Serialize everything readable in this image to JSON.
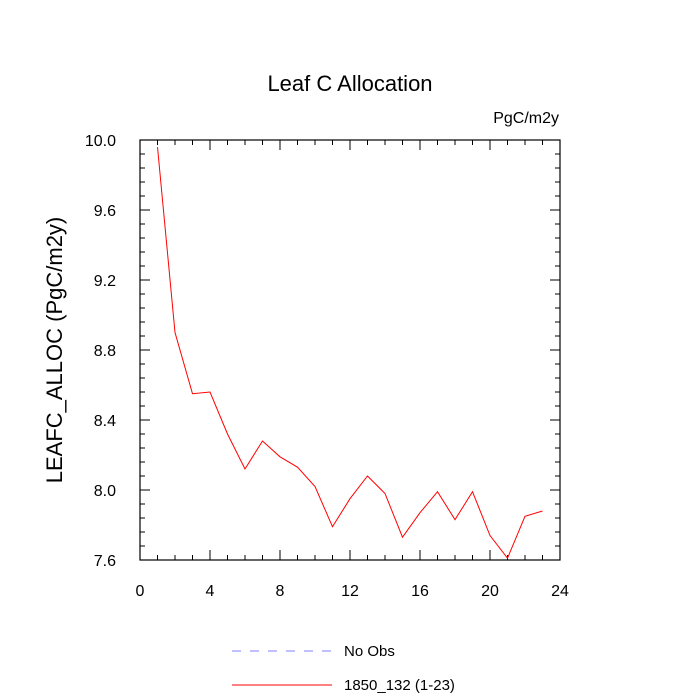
{
  "chart_data": {
    "type": "line",
    "title": "Leaf C Allocation",
    "units": "PgC/m2y",
    "ylabel": "LEAFC_ALLOC  (PgC/m2y)",
    "xlabel": "",
    "xlim": [
      0,
      24
    ],
    "ylim": [
      7.6,
      10.0
    ],
    "x_ticks": [
      0,
      4,
      8,
      12,
      16,
      20,
      24
    ],
    "x_tick_labels": [
      "0",
      "4",
      "8",
      "12",
      "16",
      "20",
      "24"
    ],
    "y_ticks": [
      7.6,
      8.0,
      8.4,
      8.8,
      9.2,
      9.6,
      10.0
    ],
    "y_tick_labels": [
      "7.6",
      "8.0",
      "8.4",
      "8.8",
      "9.2",
      "9.6",
      "10.0"
    ],
    "grid": false,
    "legend_position": "bottom",
    "series": [
      {
        "name": "1850_132 (1-23)",
        "color": "#ff0000",
        "style": "solid",
        "x": [
          1,
          2,
          3,
          4,
          5,
          6,
          7,
          8,
          9,
          10,
          11,
          12,
          13,
          14,
          15,
          16,
          17,
          18,
          19,
          20,
          21,
          22,
          23
        ],
        "y": [
          9.96,
          8.9,
          8.55,
          8.56,
          8.32,
          8.12,
          8.28,
          8.19,
          8.13,
          8.02,
          7.79,
          7.95,
          8.08,
          7.98,
          7.73,
          7.87,
          7.99,
          7.83,
          7.99,
          7.74,
          7.61,
          7.85,
          7.88
        ]
      }
    ],
    "legend": [
      {
        "label": "No Obs",
        "color": "#8080ff",
        "style": "dashed"
      },
      {
        "label": "1850_132 (1-23)",
        "color": "#ff0000",
        "style": "solid"
      }
    ]
  }
}
